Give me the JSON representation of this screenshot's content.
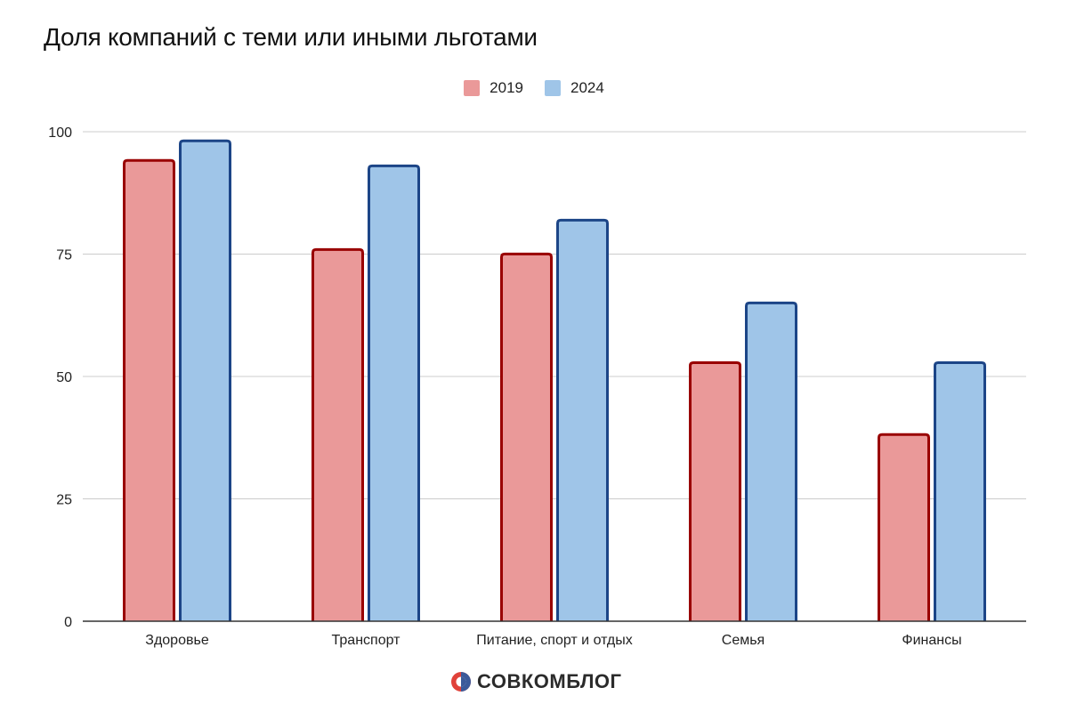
{
  "chart_data": {
    "type": "bar",
    "title": "Доля компаний с теми или иными льготами",
    "xlabel": "",
    "ylabel": "",
    "ylim": [
      0,
      100
    ],
    "yticks": [
      0,
      25,
      50,
      75,
      100
    ],
    "grid": true,
    "legend_position": "top",
    "categories": [
      "Здоровье",
      "Транспорт",
      "Питание, спорт и отдых",
      "Семья",
      "Финансы"
    ],
    "series": [
      {
        "name": "2019",
        "fill": "#ea9999",
        "stroke": "#990000",
        "values": [
          94.4,
          76.2,
          75.3,
          53.1,
          38.4
        ]
      },
      {
        "name": "2024",
        "fill": "#9fc5e8",
        "stroke": "#1c4587",
        "values": [
          98.4,
          93.3,
          82.2,
          65.3,
          53.1
        ]
      }
    ]
  },
  "legend": {
    "items": [
      {
        "label": "2019",
        "color": "#ea9999"
      },
      {
        "label": "2024",
        "color": "#9fc5e8"
      }
    ]
  },
  "footer": {
    "logo_text": "СОВКОМБЛОГ",
    "logo_colors": {
      "red": "#e0423a",
      "blue": "#3b5a9a"
    }
  }
}
